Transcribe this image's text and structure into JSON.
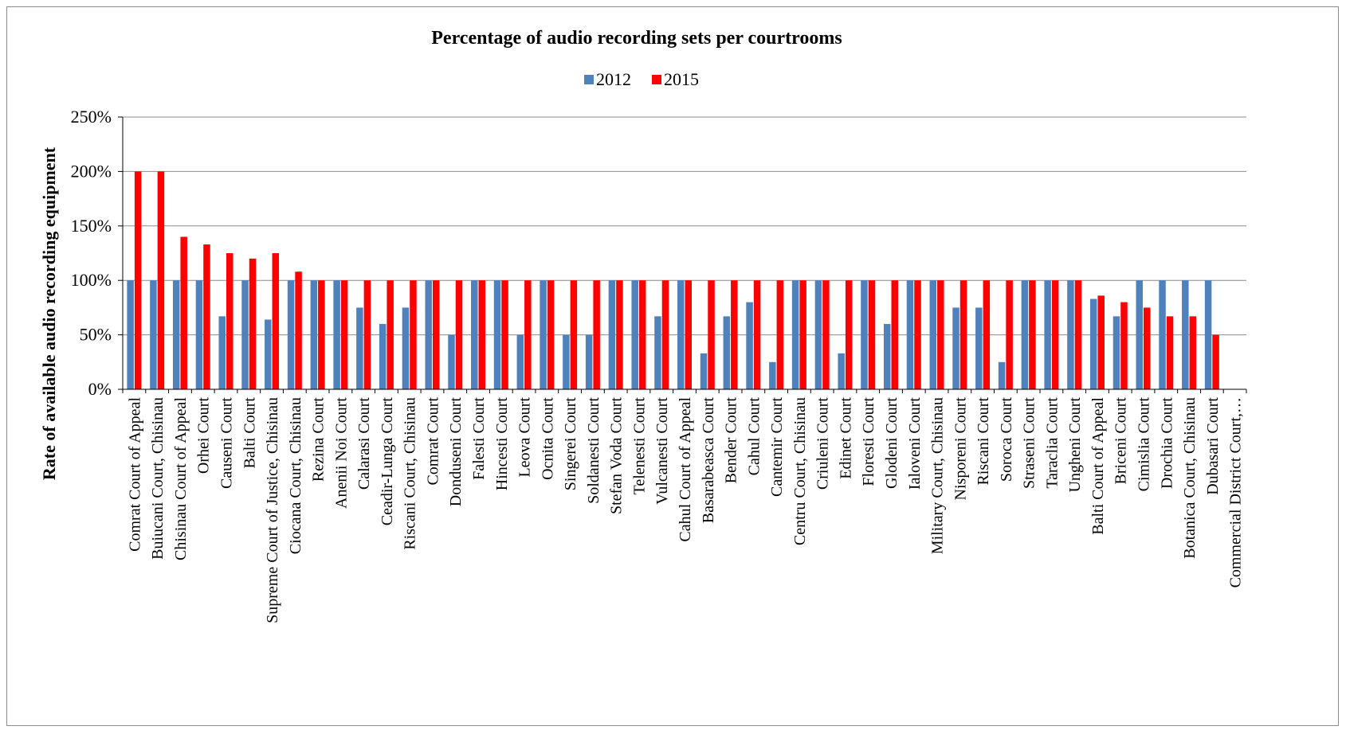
{
  "chart_data": {
    "type": "bar",
    "title": "Percentage of audio recording sets per courtrooms",
    "xlabel": "",
    "ylabel": "Rate of available audio recording equipment",
    "ylim": [
      0,
      250
    ],
    "yticks": [
      0,
      50,
      100,
      150,
      200,
      250
    ],
    "ytick_labels": [
      "0%",
      "50%",
      "100%",
      "150%",
      "200%",
      "250%"
    ],
    "grid": true,
    "legend": "top-center",
    "categories": [
      "Comrat Court of Appeal",
      "Buiucani Court, Chisinau",
      "Chisinau Court of Appeal",
      "Orhei Court",
      "Causeni Court",
      "Balti Court",
      "Supreme Court of Justice, Chisinau",
      "Ciocana Court, Chisinau",
      "Rezina Court",
      "Anenii Noi Court",
      "Calarasi Court",
      "Ceadir-Lunga Court",
      "Riscani Court, Chisinau",
      "Comrat Court",
      "Donduseni Court",
      "Falesti Court",
      "Hincesti Court",
      "Leova Court",
      "Ocnita Court",
      "Singerei Court",
      "Soldanesti Court",
      "Stefan Voda Court",
      "Telenesti Court",
      "Vulcanesti Court",
      "Cahul Court of Appeal",
      "Basarabeasca Court",
      "Bender Court",
      "Cahul Court",
      "Cantemir Court",
      "Centru Court, Chisinau",
      "Criuleni Court",
      "Edinet Court",
      "Floresti Court",
      "Glodeni Court",
      "Ialoveni Court",
      "Military Court, Chisinau",
      "Nisporeni Court",
      "Riscani Court",
      "Soroca Court",
      "Straseni Court",
      "Taraclia Court",
      "Ungheni Court",
      "Balti Court of Appeal",
      "Briceni Court",
      "Cimislia Court",
      "Drochia Court",
      "Botanica Court, Chisinau",
      "Dubasari Court",
      "Commercial District Court,…"
    ],
    "series": [
      {
        "name": "2012",
        "color": "#4F81BD",
        "values": [
          100,
          100,
          100,
          100,
          67,
          100,
          64,
          100,
          100,
          100,
          75,
          60,
          75,
          100,
          50,
          100,
          100,
          50,
          100,
          50,
          50,
          100,
          100,
          67,
          100,
          33,
          67,
          80,
          25,
          100,
          100,
          33,
          100,
          60,
          100,
          100,
          75,
          75,
          25,
          100,
          100,
          100,
          83,
          67,
          100,
          100,
          100,
          100,
          0
        ]
      },
      {
        "name": "2015",
        "color": "#FF0000",
        "values": [
          200,
          200,
          140,
          133,
          125,
          120,
          125,
          108,
          100,
          100,
          100,
          100,
          100,
          100,
          100,
          100,
          100,
          100,
          100,
          100,
          100,
          100,
          100,
          100,
          100,
          100,
          100,
          100,
          100,
          100,
          100,
          100,
          100,
          100,
          100,
          100,
          100,
          100,
          100,
          100,
          100,
          100,
          86,
          80,
          75,
          67,
          67,
          50,
          0
        ]
      }
    ]
  }
}
